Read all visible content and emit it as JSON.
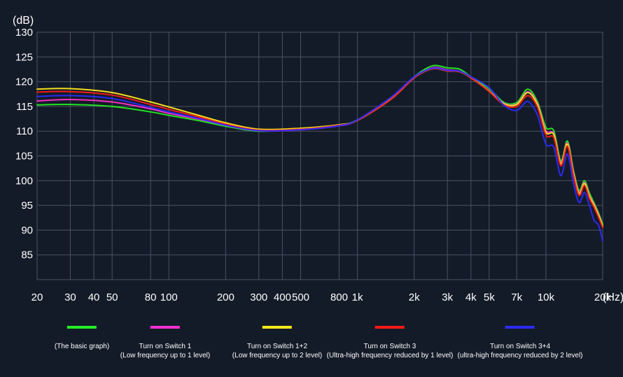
{
  "chart_data": {
    "type": "line",
    "y_unit": "(dB)",
    "x_unit": "(Hz)",
    "xscale": "log",
    "ylim": [
      80,
      130
    ],
    "xlim": [
      20,
      20000
    ],
    "grid": true,
    "legend_position": "bottom",
    "y_ticks": [
      85,
      90,
      95,
      100,
      105,
      110,
      115,
      120,
      125,
      130
    ],
    "x_ticks": [
      {
        "value": 20,
        "label": "20"
      },
      {
        "value": 30,
        "label": "30"
      },
      {
        "value": 40,
        "label": "40"
      },
      {
        "value": 50,
        "label": "50"
      },
      {
        "value": 80,
        "label": "80"
      },
      {
        "value": 100,
        "label": "100"
      },
      {
        "value": 200,
        "label": "200"
      },
      {
        "value": 300,
        "label": "300"
      },
      {
        "value": 400,
        "label": "400"
      },
      {
        "value": 500,
        "label": "500"
      },
      {
        "value": 800,
        "label": "800"
      },
      {
        "value": 1000,
        "label": "1k"
      },
      {
        "value": 2000,
        "label": "2k"
      },
      {
        "value": 3000,
        "label": "3k"
      },
      {
        "value": 4000,
        "label": "4k"
      },
      {
        "value": 5000,
        "label": "5k"
      },
      {
        "value": 7000,
        "label": "7k"
      },
      {
        "value": 10000,
        "label": "10k"
      },
      {
        "value": 20000,
        "label": "20k"
      }
    ],
    "x": [
      20,
      30,
      50,
      80,
      100,
      150,
      200,
      300,
      500,
      800,
      1000,
      1500,
      2000,
      2500,
      3000,
      3500,
      4000,
      5000,
      6000,
      7000,
      8000,
      9000,
      10000,
      11000,
      12000,
      13000,
      14000,
      15000,
      16000,
      17000,
      18000,
      19000,
      20000
    ],
    "series": [
      {
        "name": "(The basic graph)",
        "sub": "",
        "color": "#22ee22",
        "values": [
          115.3,
          115.4,
          115.0,
          113.9,
          113.2,
          112.0,
          111.0,
          110.0,
          110.4,
          111.2,
          112.3,
          116.5,
          121.0,
          123.2,
          122.8,
          122.5,
          121.0,
          118.6,
          115.8,
          115.8,
          118.5,
          116.0,
          110.8,
          110.1,
          104.0,
          108.0,
          102.0,
          98.0,
          100.0,
          97.5,
          95.5,
          93.5,
          91.2
        ]
      },
      {
        "name": "Turn on Switch 1",
        "sub": "(Low frequency up to 1 level)",
        "color": "#ff2fd0",
        "values": [
          116.1,
          116.4,
          115.9,
          114.5,
          113.6,
          112.3,
          111.2,
          110.1,
          110.3,
          111.1,
          112.2,
          116.4,
          120.8,
          122.8,
          122.4,
          122.1,
          120.8,
          118.1,
          115.6,
          115.5,
          118.0,
          115.6,
          110.1,
          109.5,
          103.6,
          107.6,
          101.6,
          97.6,
          99.6,
          97.0,
          95.2,
          93.2,
          90.8
        ]
      },
      {
        "name": "Turn on Switch 1+2",
        "sub": "(Low frequency up to 2 level)",
        "color": "#ffe81a",
        "values": [
          118.5,
          118.6,
          117.8,
          115.9,
          114.9,
          113.0,
          111.7,
          110.4,
          110.6,
          111.3,
          112.2,
          116.4,
          120.8,
          122.6,
          122.2,
          122.0,
          120.8,
          118.1,
          115.5,
          115.4,
          117.8,
          115.4,
          109.8,
          109.3,
          103.4,
          107.4,
          101.4,
          97.4,
          99.4,
          96.8,
          95.0,
          93.0,
          90.8
        ]
      },
      {
        "name": "Turn on Switch 3",
        "sub": "(Ultra-high frequency reduced by 1 level)",
        "color": "#ff1a1a",
        "values": [
          117.9,
          118.0,
          117.3,
          115.4,
          114.4,
          112.7,
          111.4,
          110.2,
          110.4,
          111.2,
          112.2,
          116.4,
          120.8,
          122.6,
          122.2,
          122.0,
          120.8,
          118.0,
          115.3,
          115.0,
          117.2,
          114.9,
          109.2,
          108.7,
          103.0,
          107.0,
          101.0,
          97.0,
          99.0,
          96.4,
          94.6,
          92.6,
          90.5
        ]
      },
      {
        "name": "Turn on Switch 3+4",
        "sub": "(ultra-high frequency reduced by 2 level)",
        "color": "#2b2bff",
        "values": [
          117.0,
          117.2,
          116.6,
          114.8,
          113.9,
          112.4,
          111.2,
          110.1,
          110.3,
          111.1,
          112.3,
          116.8,
          121.0,
          122.7,
          122.3,
          122.1,
          121.0,
          118.8,
          115.2,
          114.2,
          116.0,
          113.3,
          107.4,
          106.8,
          101.0,
          105.4,
          99.4,
          95.6,
          97.6,
          95.0,
          92.0,
          91.0,
          87.8
        ]
      }
    ]
  }
}
